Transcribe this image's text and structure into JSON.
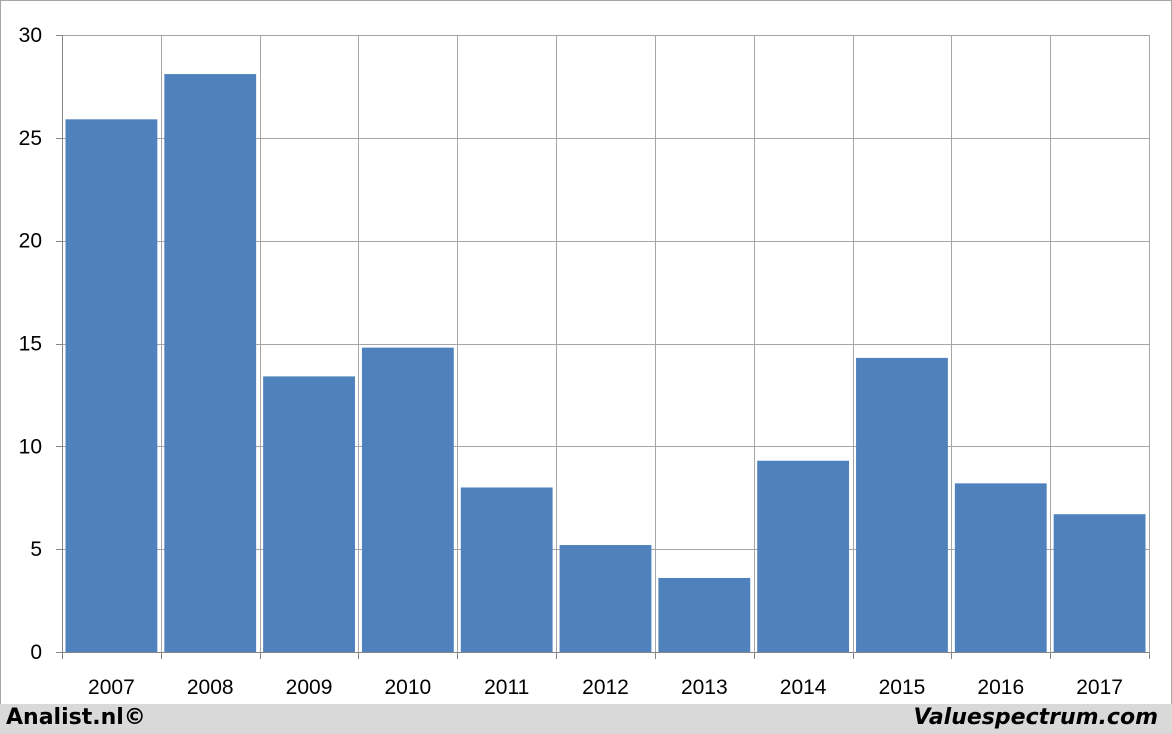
{
  "chart_data": {
    "type": "bar",
    "categories": [
      "2007",
      "2008",
      "2009",
      "2010",
      "2011",
      "2012",
      "2013",
      "2014",
      "2015",
      "2016",
      "2017"
    ],
    "values": [
      25.9,
      28.1,
      13.4,
      14.8,
      8.0,
      5.2,
      3.6,
      9.3,
      14.3,
      8.2,
      6.7
    ],
    "title": "",
    "xlabel": "",
    "ylabel": "",
    "ylim": [
      0,
      30
    ],
    "yticks": [
      0,
      5,
      10,
      15,
      20,
      25,
      30
    ],
    "grid": true,
    "bar_color": "#4f81bd",
    "grid_color": "#a6a6a6"
  },
  "footer": {
    "left": "Analist.nl©",
    "right": "Valuespectrum.com"
  }
}
